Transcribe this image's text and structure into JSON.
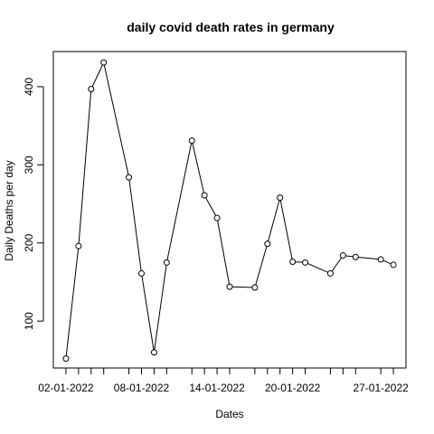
{
  "chart_data": {
    "type": "line",
    "title": "daily covid death rates in germany",
    "xlabel": "Dates",
    "ylabel": "Daily Deaths per day",
    "x": [
      "2022-01-02",
      "2022-01-03",
      "2022-01-04",
      "2022-01-05",
      "2022-01-07",
      "2022-01-08",
      "2022-01-09",
      "2022-01-10",
      "2022-01-12",
      "2022-01-13",
      "2022-01-14",
      "2022-01-15",
      "2022-01-17",
      "2022-01-18",
      "2022-01-19",
      "2022-01-20",
      "2022-01-21",
      "2022-01-23",
      "2022-01-24",
      "2022-01-25",
      "2022-01-27",
      "2022-01-28"
    ],
    "y": [
      52,
      196,
      397,
      431,
      284,
      161,
      60,
      175,
      331,
      261,
      232,
      144,
      143,
      199,
      258,
      176,
      175,
      161,
      184,
      182,
      179,
      172
    ],
    "x_ticks": [
      "2022-01-02",
      "2022-01-03",
      "2022-01-04",
      "2022-01-05",
      "2022-01-07",
      "2022-01-08",
      "2022-01-09",
      "2022-01-10",
      "2022-01-12",
      "2022-01-13",
      "2022-01-14",
      "2022-01-15",
      "2022-01-17",
      "2022-01-18",
      "2022-01-19",
      "2022-01-20",
      "2022-01-21",
      "2022-01-23",
      "2022-01-24",
      "2022-01-25",
      "2022-01-27",
      "2022-01-28"
    ],
    "x_tick_labels": [
      {
        "date": "2022-01-02",
        "label": "02-01-2022"
      },
      {
        "date": "2022-01-08",
        "label": "08-01-2022"
      },
      {
        "date": "2022-01-14",
        "label": "14-01-2022"
      },
      {
        "date": "2022-01-20",
        "label": "20-01-2022"
      },
      {
        "date": "2022-01-27",
        "label": "27-01-2022"
      }
    ],
    "y_ticks": [
      100,
      200,
      300,
      400
    ],
    "xlim": [
      "2022-01-01",
      "2022-01-29"
    ],
    "ylim": [
      40,
      445
    ],
    "marker": "open-circle",
    "line_color": "#000000",
    "grid": false
  }
}
